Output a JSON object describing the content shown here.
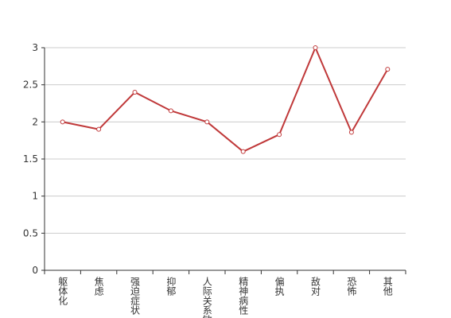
{
  "chart_data": {
    "type": "line",
    "categories": [
      "躯体化",
      "焦虑",
      "强迫症状",
      "抑郁",
      "人际关系敏感",
      "精神病性",
      "偏执",
      "敌对",
      "恐怖",
      "其他"
    ],
    "series": [
      {
        "color": "#c0393a",
        "values": [
          2.0,
          1.9,
          2.4,
          2.15,
          2.0,
          1.6,
          1.83,
          3.0,
          1.86,
          2.71
        ]
      }
    ],
    "ylim": [
      0,
      3
    ],
    "yticks": [
      0,
      0.5,
      1,
      1.5,
      2,
      2.5,
      3
    ],
    "grid": true
  }
}
